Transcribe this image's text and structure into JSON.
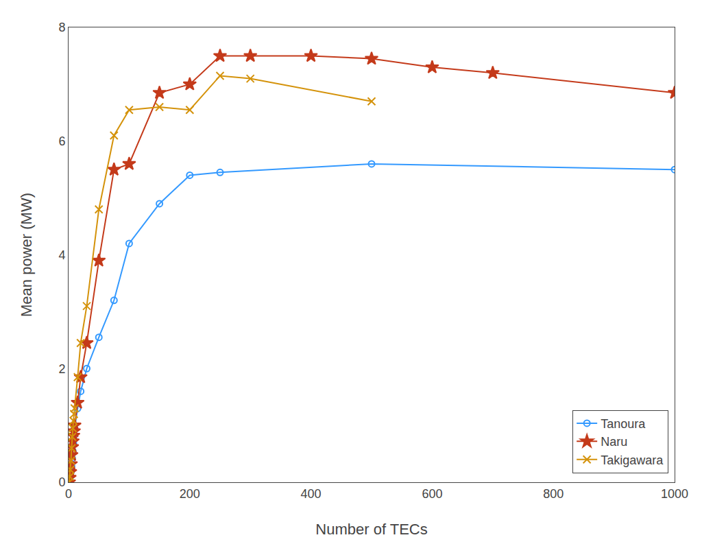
{
  "chart_data": {
    "type": "line",
    "xlabel": "Number of TECs",
    "ylabel": "Mean power (MW)",
    "xlim": [
      0,
      1000
    ],
    "ylim": [
      0,
      8
    ],
    "xticks": [
      0,
      200,
      400,
      600,
      800,
      1000
    ],
    "yticks": [
      0,
      2,
      4,
      6,
      8
    ],
    "grid": false,
    "legend": "lower right",
    "series": [
      {
        "name": "Tanoura",
        "color": "#3399FF",
        "marker": "circle-open",
        "line_style": "solid",
        "x": [
          1,
          2,
          3,
          4,
          5,
          6,
          7,
          8,
          9,
          10,
          15,
          20,
          30,
          50,
          75,
          100,
          150,
          200,
          250,
          500,
          1000
        ],
        "values": [
          0.0,
          0.05,
          0.1,
          0.18,
          0.28,
          0.42,
          0.55,
          0.68,
          0.82,
          0.95,
          1.3,
          1.6,
          2.0,
          2.55,
          3.2,
          4.2,
          4.9,
          5.4,
          5.45,
          5.6,
          5.5
        ]
      },
      {
        "name": "Naru",
        "color": "#C43A1A",
        "marker": "star",
        "line_style": "solid",
        "x": [
          1,
          2,
          3,
          4,
          5,
          6,
          7,
          8,
          9,
          10,
          15,
          20,
          30,
          50,
          75,
          100,
          150,
          200,
          250,
          300,
          400,
          500,
          600,
          700,
          1000
        ],
        "values": [
          0.0,
          0.08,
          0.18,
          0.32,
          0.48,
          0.62,
          0.72,
          0.82,
          0.9,
          1.0,
          1.4,
          1.85,
          2.45,
          3.9,
          5.5,
          5.6,
          6.85,
          7.0,
          7.5,
          7.5,
          7.5,
          7.45,
          7.3,
          7.2,
          6.85
        ]
      },
      {
        "name": "Takigawara",
        "color": "#D4920A",
        "marker": "x",
        "line_style": "solid",
        "x": [
          1,
          2,
          3,
          4,
          5,
          6,
          7,
          8,
          9,
          10,
          15,
          20,
          30,
          50,
          75,
          100,
          150,
          200,
          250,
          300,
          500
        ],
        "values": [
          0.0,
          0.1,
          0.22,
          0.38,
          0.6,
          0.8,
          0.95,
          1.08,
          1.2,
          1.3,
          1.85,
          2.45,
          3.1,
          4.8,
          6.1,
          6.55,
          6.6,
          6.55,
          7.15,
          7.1,
          6.7
        ]
      }
    ]
  }
}
